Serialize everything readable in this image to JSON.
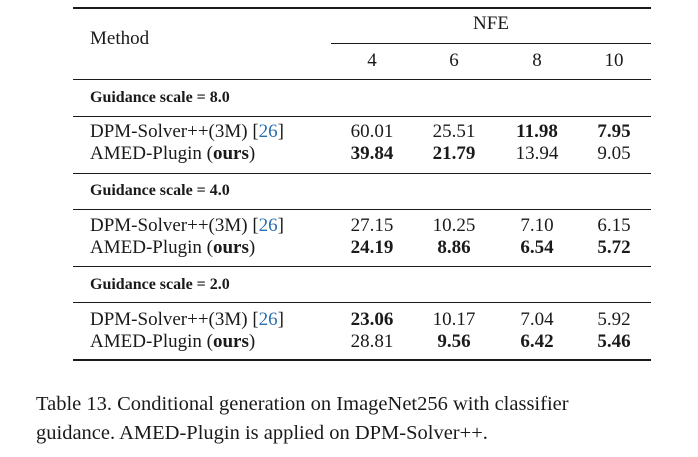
{
  "table": {
    "header": {
      "method_label": "Method",
      "nfe_label": "NFE",
      "nfe_values": [
        "4",
        "6",
        "8",
        "10"
      ]
    },
    "groups": [
      {
        "title": "Guidance scale = 8.0",
        "rows": [
          {
            "method_prefix": "DPM-Solver++(3M) [",
            "citation": "26",
            "method_suffix": "]",
            "ours": "",
            "values": [
              "60.01",
              "25.51",
              "11.98",
              "7.95"
            ],
            "bold": [
              false,
              false,
              true,
              true
            ]
          },
          {
            "method_prefix": "AMED-Plugin (",
            "citation": "",
            "method_suffix": ")",
            "ours": "ours",
            "values": [
              "39.84",
              "21.79",
              "13.94",
              "9.05"
            ],
            "bold": [
              true,
              true,
              false,
              false
            ]
          }
        ]
      },
      {
        "title": "Guidance scale = 4.0",
        "rows": [
          {
            "method_prefix": "DPM-Solver++(3M) [",
            "citation": "26",
            "method_suffix": "]",
            "ours": "",
            "values": [
              "27.15",
              "10.25",
              "7.10",
              "6.15"
            ],
            "bold": [
              false,
              false,
              false,
              false
            ]
          },
          {
            "method_prefix": "AMED-Plugin (",
            "citation": "",
            "method_suffix": ")",
            "ours": "ours",
            "values": [
              "24.19",
              "8.86",
              "6.54",
              "5.72"
            ],
            "bold": [
              true,
              true,
              true,
              true
            ]
          }
        ]
      },
      {
        "title": "Guidance scale = 2.0",
        "rows": [
          {
            "method_prefix": "DPM-Solver++(3M) [",
            "citation": "26",
            "method_suffix": "]",
            "ours": "",
            "values": [
              "23.06",
              "10.17",
              "7.04",
              "5.92"
            ],
            "bold": [
              true,
              false,
              false,
              false
            ]
          },
          {
            "method_prefix": "AMED-Plugin (",
            "citation": "",
            "method_suffix": ")",
            "ours": "ours",
            "values": [
              "28.81",
              "9.56",
              "6.42",
              "5.46"
            ],
            "bold": [
              false,
              true,
              true,
              true
            ]
          }
        ]
      }
    ]
  },
  "caption": {
    "line1": "Table 13. Conditional generation on ImageNet256 with classifier",
    "line2": "guidance. AMED-Plugin is applied on DPM-Solver++."
  },
  "colors": {
    "citation": "#2a6fb0",
    "text": "#1a1a1a"
  }
}
